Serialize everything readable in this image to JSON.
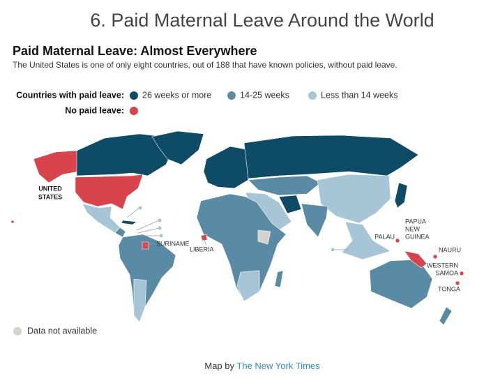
{
  "header": {
    "title": "6. Paid Maternal Leave Around the World"
  },
  "map": {
    "title": "Paid Maternal Leave: Almost Everywhere",
    "subtitle": "The United States is one of only eight countries, out of 188 that have known policies, without paid leave."
  },
  "legend": {
    "with_paid_label": "Countries with paid leave:",
    "items": [
      {
        "label": "26 weeks or more",
        "color": "#0d4b66"
      },
      {
        "label": "14-25 weeks",
        "color": "#5a8ba4"
      },
      {
        "label": "Less than 14 weeks",
        "color": "#a6c5d7"
      }
    ],
    "no_paid_label": "No paid leave:",
    "no_paid_color": "#d9434b",
    "na_label": "Data not available",
    "na_color": "#d3d3cf"
  },
  "labels": {
    "united_states": [
      "UNITED",
      "STATES"
    ],
    "suriname": "SURINAME",
    "liberia": "LIBERIA",
    "palau": "PALAU",
    "papua_new_guinea": [
      "PAPUA",
      "NEW",
      "GUINEA"
    ],
    "nauru": "NAURU",
    "western_samoa": [
      "WESTERN",
      "SAMOA"
    ],
    "tonga": "TONGA"
  },
  "footer": {
    "prefix": "Map by",
    "source": "The New York Times"
  }
}
